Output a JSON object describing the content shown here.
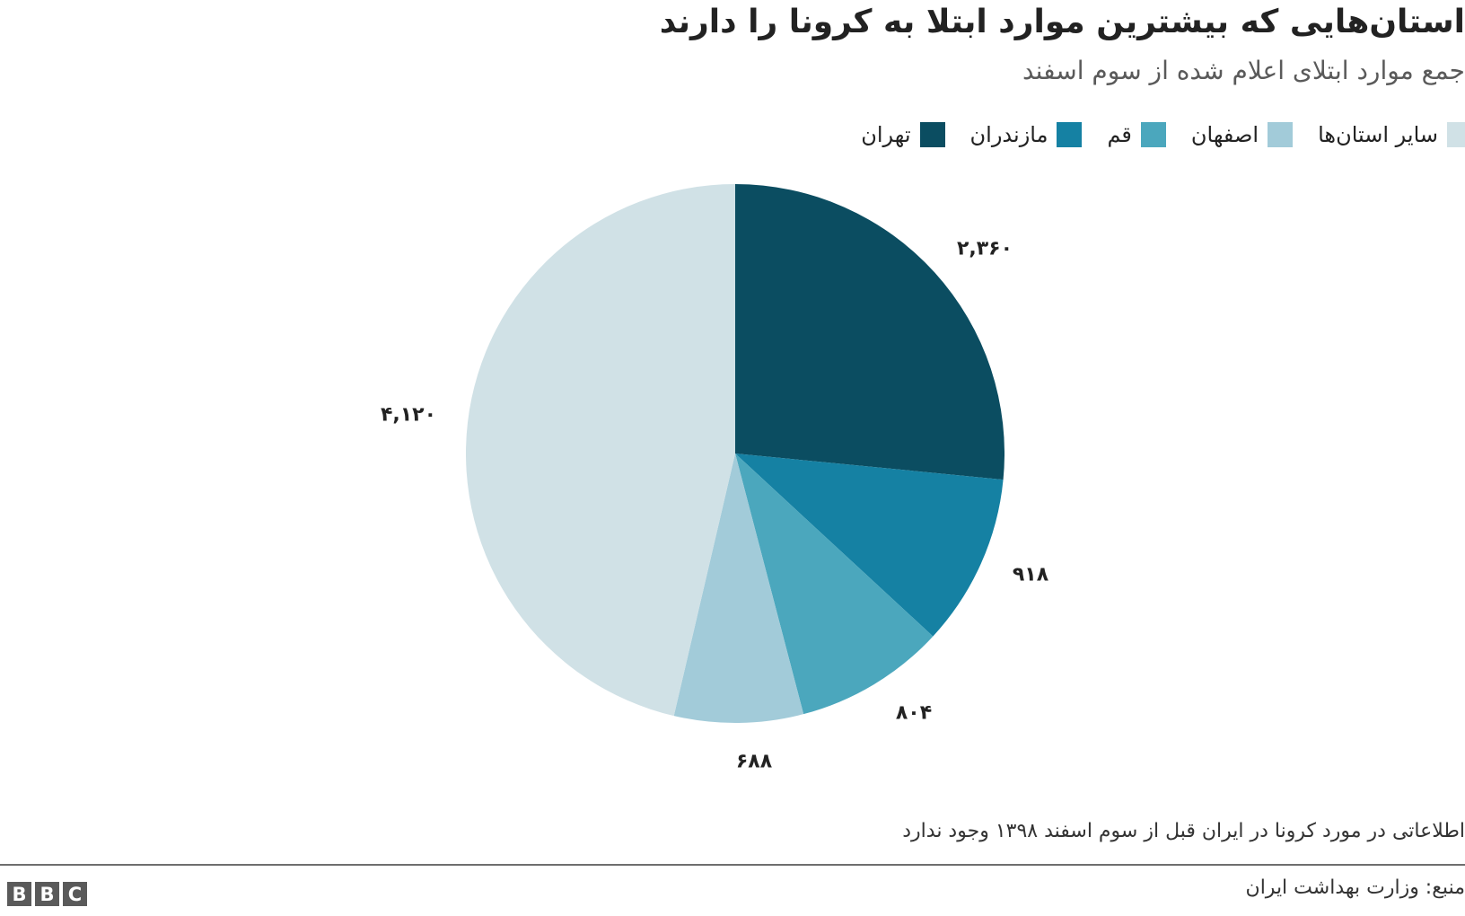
{
  "header": {
    "title": "استان‌هایی که بیشترین موارد ابتلا به کرونا را دارند",
    "subtitle": "جمع موارد ابتلای اعلام شده از سوم اسفند"
  },
  "legend": [
    {
      "label": "سایر استان‌ها",
      "color": "#d0e1e6"
    },
    {
      "label": "اصفهان",
      "color": "#a2cbd9"
    },
    {
      "label": "قم",
      "color": "#4ba7bd"
    },
    {
      "label": "مازندران",
      "color": "#1581a3"
    },
    {
      "label": "تهران",
      "color": "#0b4d61"
    }
  ],
  "chart_data": {
    "type": "pie",
    "title": "استان‌هایی که بیشترین موارد ابتلا به کرونا را دارند",
    "subtitle": "جمع موارد ابتلای اعلام شده از سوم اسفند",
    "categories": [
      "تهران",
      "مازندران",
      "قم",
      "اصفهان",
      "سایر استان‌ها"
    ],
    "values": [
      2360,
      918,
      804,
      688,
      4120
    ],
    "value_labels": [
      "۲,۳۶۰",
      "۹۱۸",
      "۸۰۴",
      "۶۸۸",
      "۴,۱۲۰"
    ],
    "colors": [
      "#0b4d61",
      "#1581a3",
      "#4ba7bd",
      "#a2cbd9",
      "#d0e1e6"
    ],
    "start_angle": "12 o'clock, clockwise",
    "legend_position": "top-right"
  },
  "labels": {
    "tehran": "۲,۳۶۰",
    "mazandaran": "۹۱۸",
    "qom": "۸۰۴",
    "isfahan": "۶۸۸",
    "others": "۴,۱۲۰"
  },
  "footer": {
    "note": "اطلاعاتی در مورد کرونا در ایران قبل از سوم اسفند ۱۳۹۸ وجود ندارد",
    "source": "منبع: وزارت بهداشت ایران",
    "logo": [
      "B",
      "B",
      "C"
    ]
  }
}
